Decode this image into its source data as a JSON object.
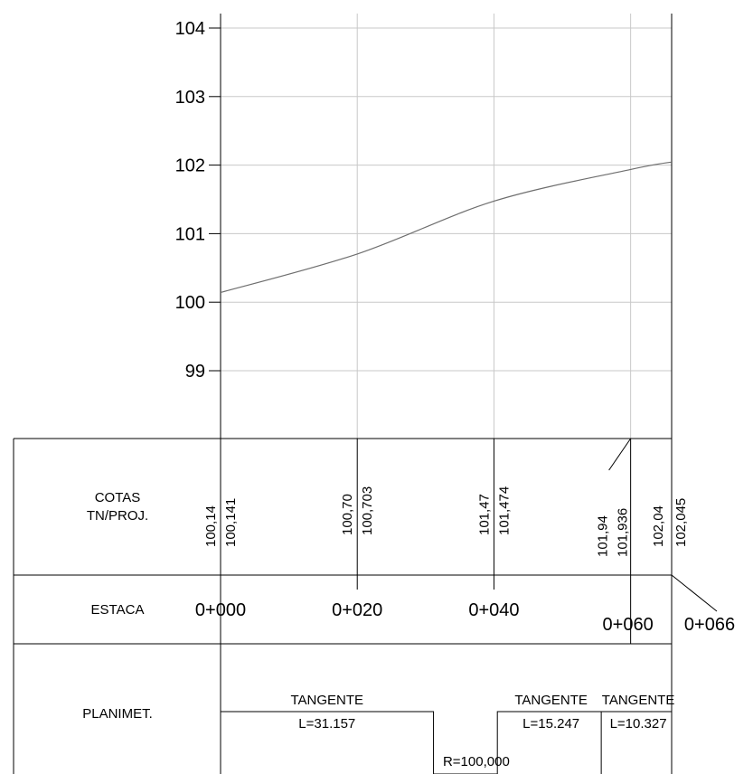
{
  "chart_data": {
    "type": "line",
    "title": "",
    "xlabel": "",
    "ylabel": "",
    "xlim": [
      0,
      66
    ],
    "ylim": [
      98,
      104
    ],
    "y_ticks": [
      "99",
      "100",
      "101",
      "102",
      "103",
      "104"
    ],
    "grid": true,
    "series": [
      {
        "x": [
          0,
          20,
          40,
          60,
          66
        ],
        "y": [
          100.141,
          100.703,
          101.474,
          101.936,
          102.045
        ]
      }
    ]
  },
  "table": {
    "row_labels": {
      "cotas_line1": "COTAS",
      "cotas_line2": "TN/PROJ.",
      "estaca": "ESTACA",
      "planimet": "PLANIMET."
    },
    "stations": [
      {
        "x": 0,
        "estaca": "0+000",
        "tn": "100,14",
        "proj": "100,141"
      },
      {
        "x": 20,
        "estaca": "0+020",
        "tn": "100,70",
        "proj": "100,703"
      },
      {
        "x": 40,
        "estaca": "0+040",
        "tn": "101,47",
        "proj": "101,474"
      },
      {
        "x": 60,
        "estaca": "0+060",
        "tn": "101,94",
        "proj": "101,936"
      },
      {
        "x": 66,
        "estaca": "0+066",
        "tn": "102,04",
        "proj": "102,045"
      }
    ],
    "planimetry": [
      {
        "kind": "tangent",
        "from": 0,
        "to": 31.157,
        "label": "TANGENTE",
        "length": "L=31.157"
      },
      {
        "kind": "curve",
        "from": 31.157,
        "to": 40.5,
        "label": "R=100,000"
      },
      {
        "kind": "tangent",
        "from": 40.5,
        "to": 55.7,
        "label": "TANGENTE",
        "length": "L=15.247"
      },
      {
        "kind": "tangent",
        "from": 55.7,
        "to": 66,
        "label": "TANGENTE",
        "length": "L=10.327"
      }
    ]
  }
}
